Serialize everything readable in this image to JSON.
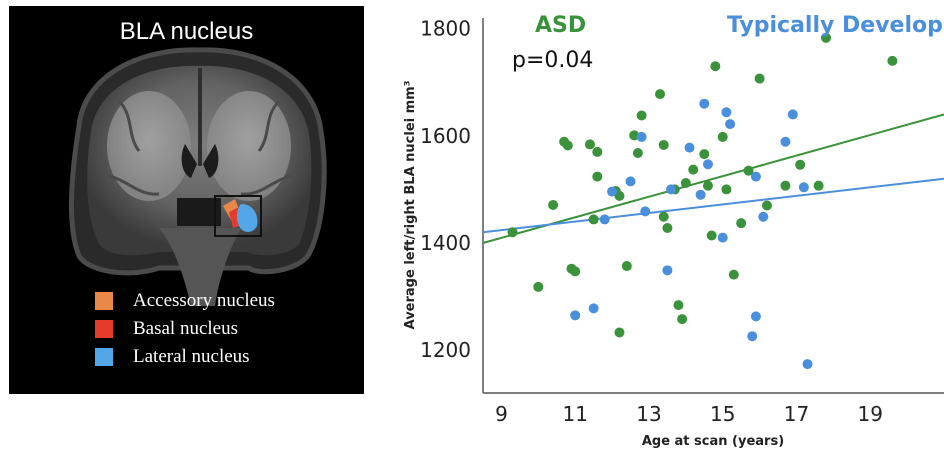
{
  "panel": {
    "title": "BLA nucleus",
    "legend": [
      {
        "label": "Accessory nucleus",
        "color": "#e8894a"
      },
      {
        "label": "Basal nucleus",
        "color": "#e33b2c"
      },
      {
        "label": "Lateral nucleus",
        "color": "#53a7e8"
      }
    ]
  },
  "chart_data": {
    "type": "scatter",
    "xlabel": "Age at scan (years)",
    "ylabel": "Average left/right BLA nuclei mm³",
    "xlim": [
      8.5,
      21
    ],
    "ylim": [
      1120,
      1820
    ],
    "xticks": [
      9,
      11,
      13,
      15,
      17,
      19
    ],
    "yticks": [
      1200,
      1400,
      1600,
      1800
    ],
    "annotations": [
      "p=0.04"
    ],
    "series": [
      {
        "name": "ASD",
        "color": "#3a923a",
        "fit": [
          [
            8.5,
            1400
          ],
          [
            21,
            1640
          ]
        ],
        "points": [
          [
            9.3,
            1420
          ],
          [
            10.0,
            1318
          ],
          [
            10.4,
            1471
          ],
          [
            10.7,
            1589
          ],
          [
            10.8,
            1582
          ],
          [
            10.9,
            1352
          ],
          [
            11.0,
            1347
          ],
          [
            11.4,
            1584
          ],
          [
            11.6,
            1570
          ],
          [
            11.6,
            1524
          ],
          [
            11.5,
            1444
          ],
          [
            12.1,
            1497
          ],
          [
            12.2,
            1488
          ],
          [
            12.2,
            1233
          ],
          [
            12.4,
            1357
          ],
          [
            12.6,
            1601
          ],
          [
            12.7,
            1568
          ],
          [
            12.8,
            1638
          ],
          [
            13.3,
            1678
          ],
          [
            13.4,
            1583
          ],
          [
            13.4,
            1449
          ],
          [
            13.5,
            1428
          ],
          [
            13.7,
            1500
          ],
          [
            13.8,
            1284
          ],
          [
            13.9,
            1258
          ],
          [
            14.0,
            1512
          ],
          [
            14.2,
            1537
          ],
          [
            14.5,
            1566
          ],
          [
            14.6,
            1507
          ],
          [
            14.8,
            1730
          ],
          [
            14.7,
            1414
          ],
          [
            15.0,
            1598
          ],
          [
            15.1,
            1500
          ],
          [
            15.3,
            1341
          ],
          [
            15.5,
            1437
          ],
          [
            15.7,
            1535
          ],
          [
            16.0,
            1707
          ],
          [
            16.2,
            1470
          ],
          [
            16.7,
            1507
          ],
          [
            17.1,
            1546
          ],
          [
            17.6,
            1507
          ],
          [
            17.8,
            1783
          ],
          [
            19.6,
            1740
          ]
        ]
      },
      {
        "name": "Typically Developing",
        "color": "#4a8fdb",
        "fit": [
          [
            8.5,
            1420
          ],
          [
            21,
            1520
          ]
        ],
        "points": [
          [
            11.0,
            1265
          ],
          [
            11.5,
            1278
          ],
          [
            11.8,
            1444
          ],
          [
            12.0,
            1496
          ],
          [
            12.5,
            1515
          ],
          [
            12.8,
            1598
          ],
          [
            12.9,
            1459
          ],
          [
            13.5,
            1349
          ],
          [
            13.6,
            1500
          ],
          [
            14.1,
            1578
          ],
          [
            14.4,
            1490
          ],
          [
            14.5,
            1660
          ],
          [
            14.6,
            1547
          ],
          [
            15.0,
            1410
          ],
          [
            15.1,
            1644
          ],
          [
            15.2,
            1622
          ],
          [
            15.8,
            1226
          ],
          [
            15.9,
            1524
          ],
          [
            15.9,
            1263
          ],
          [
            16.1,
            1449
          ],
          [
            16.7,
            1589
          ],
          [
            16.9,
            1640
          ],
          [
            17.2,
            1504
          ],
          [
            17.3,
            1174
          ]
        ]
      }
    ]
  }
}
